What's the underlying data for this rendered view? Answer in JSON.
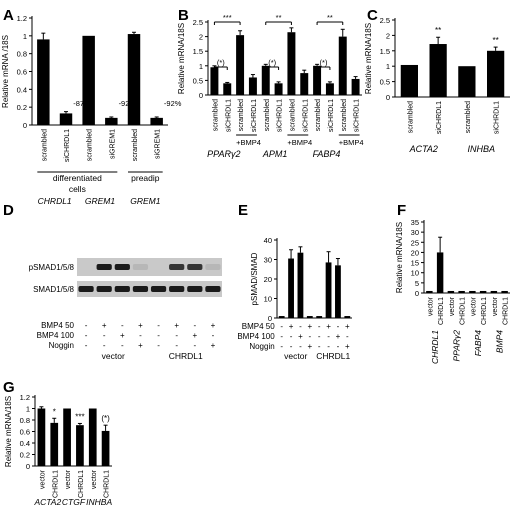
{
  "panels": {
    "A": {
      "letter": "A"
    },
    "B": {
      "letter": "B"
    },
    "C": {
      "letter": "C"
    },
    "D": {
      "letter": "D"
    },
    "E": {
      "letter": "E"
    },
    "F": {
      "letter": "F"
    },
    "G": {
      "letter": "G"
    }
  },
  "colors": {
    "bar": "#000000",
    "axis": "#000000",
    "blot_bg": "#c9c9c9",
    "band": "#1a1a1a"
  },
  "chart_data": [
    {
      "panel": "A",
      "type": "bar",
      "ylabel": "Relative mRNA /18S",
      "ylim": [
        0,
        1.2
      ],
      "yticks": [
        "0",
        "0.2",
        "0.4",
        "0.6",
        "0.8",
        "1",
        "1.2"
      ],
      "categories": [
        "scrambled",
        "siCHRDL1",
        "scrambled",
        "siGREM1",
        "scrambled",
        "siGREM1"
      ],
      "values": [
        0.96,
        0.13,
        1.0,
        0.08,
        1.02,
        0.08
      ],
      "errors": [
        0.07,
        0.02,
        0.0,
        0.01,
        0.02,
        0.01
      ],
      "annotations": [
        {
          "bar": 1,
          "text": "-87%"
        },
        {
          "bar": 3,
          "text": "-92%"
        },
        {
          "bar": 5,
          "text": "-92%"
        }
      ],
      "group_labels": [
        "differentiated",
        "cells",
        "preadip"
      ],
      "gene_labels": [
        "CHRDL1",
        "GREM1",
        "GREM1"
      ]
    },
    {
      "panel": "B",
      "type": "bar",
      "ylabel": "Relative mRNA/18S",
      "ylim": [
        0,
        2.5
      ],
      "yticks": [
        "0",
        "0.5",
        "1",
        "1.5",
        "2",
        "2.5"
      ],
      "categories": [
        "scrambled",
        "siCHRDL1",
        "scrambled",
        "siCHRDL1",
        "scrambled",
        "siCHRDL1",
        "scrambled",
        "siCHRDL1",
        "scrambled",
        "siCHRDL1",
        "scrambled",
        "siCHRDL1"
      ],
      "values": [
        0.95,
        0.4,
        2.05,
        0.6,
        1.0,
        0.4,
        2.15,
        0.75,
        1.0,
        0.4,
        2.0,
        0.55
      ],
      "errors": [
        0.05,
        0.03,
        0.15,
        0.1,
        0.05,
        0.05,
        0.15,
        0.1,
        0.05,
        0.05,
        0.25,
        0.08
      ],
      "treatment_label": "+BMP4",
      "gene_labels": [
        "PPARγ2",
        "APM1",
        "FABP4"
      ],
      "significance": [
        {
          "from": 0,
          "to": 1,
          "text": "(*)"
        },
        {
          "from": 0,
          "to": 2,
          "text": "***"
        },
        {
          "from": 4,
          "to": 5,
          "text": "(*)"
        },
        {
          "from": 4,
          "to": 6,
          "text": "**"
        },
        {
          "from": 8,
          "to": 9,
          "text": "(*)"
        },
        {
          "from": 8,
          "to": 10,
          "text": "**"
        }
      ]
    },
    {
      "panel": "C",
      "type": "bar",
      "ylabel": "Relative mRNA/18S",
      "ylim": [
        0,
        2.5
      ],
      "yticks": [
        "0",
        "0.5",
        "1",
        "1.5",
        "2",
        "2.5"
      ],
      "categories": [
        "scrambled",
        "siCHRDL1",
        "scrambled",
        "siCHRDL1"
      ],
      "values": [
        1.04,
        1.72,
        1.0,
        1.5
      ],
      "errors": [
        0.0,
        0.22,
        0.0,
        0.12
      ],
      "stars": [
        "",
        "**",
        "",
        "**"
      ],
      "gene_labels": [
        "ACTA2",
        "INHBA"
      ]
    },
    {
      "panel": "E",
      "type": "bar",
      "ylabel": "pSMAD/SMAD",
      "ylim": [
        0,
        40
      ],
      "yticks": [
        "0",
        "10",
        "20",
        "30",
        "40"
      ],
      "values": [
        1.0,
        30.5,
        33.5,
        1.0,
        1.0,
        28.5,
        27.0,
        1.0
      ],
      "errors": [
        0.0,
        4.5,
        3.0,
        0.0,
        0.0,
        5.5,
        3.5,
        0.0
      ],
      "condition_labels": [
        "BMP4  50",
        "BMP4 100",
        "Noggin"
      ],
      "condition_matrix": [
        [
          "-",
          "+",
          "-",
          "+",
          "-",
          "+",
          "-",
          "+"
        ],
        [
          "-",
          "-",
          "+",
          "-",
          "-",
          "-",
          "+",
          "-"
        ],
        [
          "-",
          "-",
          "-",
          "+",
          "-",
          "-",
          "-",
          "+"
        ]
      ],
      "group_labels": [
        "vector",
        "CHRDL1"
      ]
    },
    {
      "panel": "F",
      "type": "bar",
      "ylabel": "Relative mRNA/18S",
      "ylim": [
        0,
        35
      ],
      "yticks": [
        "0",
        "5",
        "10",
        "15",
        "20",
        "25",
        "30",
        "35"
      ],
      "categories": [
        "vector",
        "CHRDL1",
        "vector",
        "CHRDL1",
        "vector",
        "CHRDL1",
        "vector",
        "CHRDL1"
      ],
      "values": [
        1.0,
        20.0,
        1.0,
        1.0,
        1.0,
        1.0,
        1.0,
        1.0
      ],
      "errors": [
        0.0,
        7.5,
        0.0,
        0.0,
        0.0,
        0.0,
        0.0,
        0.0
      ],
      "gene_labels": [
        "CHRDL1",
        "PPARγ2",
        "FABP4",
        "BMP4"
      ]
    },
    {
      "panel": "G",
      "type": "bar",
      "ylabel": "Relative mRNA/18S",
      "ylim": [
        0,
        1.2
      ],
      "yticks": [
        "0",
        "0.2",
        "0.4",
        "0.6",
        "0.8",
        "1",
        "1.2"
      ],
      "categories": [
        "vector",
        "CHRDL1",
        "vector",
        "CHRDL1",
        "vector",
        "CHRDL1"
      ],
      "values": [
        1.0,
        0.75,
        1.0,
        0.71,
        1.0,
        0.61
      ],
      "errors": [
        0.03,
        0.08,
        0.0,
        0.03,
        0.0,
        0.1
      ],
      "stars": [
        "",
        "*",
        "",
        "***",
        "",
        "(*)"
      ],
      "gene_labels": [
        "ACTA2",
        "CTGF",
        "INHBA"
      ]
    }
  ],
  "blot": {
    "row_labels": [
      "pSMAD1/5/8",
      "SMAD1/5/8"
    ],
    "condition_labels": [
      "BMP4  50",
      "BMP4 100",
      "Noggin"
    ],
    "condition_matrix": [
      [
        "-",
        "+",
        "-",
        "+",
        "-",
        "+",
        "-",
        "+"
      ],
      [
        "-",
        "-",
        "+",
        "-",
        "-",
        "-",
        "+",
        "-"
      ],
      [
        "-",
        "-",
        "-",
        "+",
        "-",
        "-",
        "-",
        "+"
      ]
    ],
    "group_labels": [
      "vector",
      "CHRDL1"
    ],
    "psmad_intensity": [
      0.0,
      1.0,
      1.0,
      0.1,
      0.0,
      0.85,
      0.85,
      0.1
    ],
    "smad_intensity": [
      1.0,
      1.0,
      1.0,
      1.0,
      1.0,
      1.0,
      1.0,
      1.0
    ]
  }
}
